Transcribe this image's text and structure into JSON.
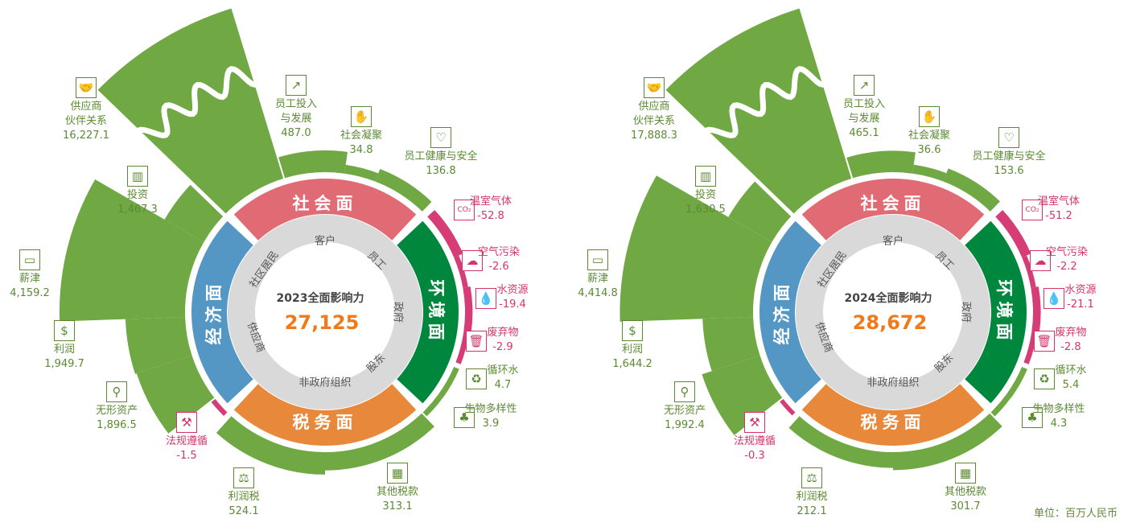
{
  "unit_label": "单位：百万人民币",
  "colors": {
    "positive": "#70a844",
    "negative": "#d63d77",
    "social": "#e06b74",
    "environment": "#00873e",
    "tax": "#e8883a",
    "economic": "#5496c4",
    "stakeholder_ring": "#d9d9d9",
    "total": "#f07a1a",
    "label_green": "#5b8a33",
    "label_pink": "#d6336c"
  },
  "segments": [
    "社会面",
    "环境面",
    "税务面",
    "经济面"
  ],
  "stakeholders": [
    "客户",
    "员工",
    "政府",
    "股东",
    "非政府组织",
    "供应商",
    "社区居民"
  ],
  "chart_data": [
    {
      "type": "radial-bar",
      "title": "2023全面影响力",
      "total": "27,125",
      "items": [
        {
          "label": [
            "供应商",
            "伙伴关系"
          ],
          "value": "16,227.1",
          "v": 16227.1,
          "segment": "经济面",
          "icon": "handshake-icon"
        },
        {
          "label": [
            "投资"
          ],
          "value": "1,467.3",
          "v": 1467.3,
          "segment": "经济面",
          "icon": "bar-chart-icon"
        },
        {
          "label": [
            "薪津"
          ],
          "value": "4,159.2",
          "v": 4159.2,
          "segment": "经济面",
          "icon": "cash-icon"
        },
        {
          "label": [
            "利润"
          ],
          "value": "1,949.7",
          "v": 1949.7,
          "segment": "经济面",
          "icon": "dollar-icon"
        },
        {
          "label": [
            "无形资产"
          ],
          "value": "1,896.5",
          "v": 1896.5,
          "segment": "经济面",
          "icon": "magnifier-dollar-icon"
        },
        {
          "label": [
            "法规遵循"
          ],
          "value": "-1.5",
          "v": -1.5,
          "segment": "税务面",
          "icon": "gavel-icon"
        },
        {
          "label": [
            "利润税"
          ],
          "value": "524.1",
          "v": 524.1,
          "segment": "税务面",
          "icon": "scales-icon"
        },
        {
          "label": [
            "其他税款"
          ],
          "value": "313.1",
          "v": 313.1,
          "segment": "税务面",
          "icon": "building-icon"
        },
        {
          "label": [
            "生物多样性"
          ],
          "value": "3.9",
          "v": 3.9,
          "segment": "环境面",
          "icon": "tree-icon"
        },
        {
          "label": [
            "循环水"
          ],
          "value": "4.7",
          "v": 4.7,
          "segment": "环境面",
          "icon": "recycle-water-icon"
        },
        {
          "label": [
            "废弃物"
          ],
          "value": "-2.9",
          "v": -2.9,
          "segment": "环境面",
          "icon": "trash-icon"
        },
        {
          "label": [
            "水资源"
          ],
          "value": "-19.4",
          "v": -19.4,
          "segment": "环境面",
          "icon": "water-drop-icon"
        },
        {
          "label": [
            "空气污染"
          ],
          "value": "-2.6",
          "v": -2.6,
          "segment": "环境面",
          "icon": "cloud-pollution-icon"
        },
        {
          "label": [
            "温室气体"
          ],
          "value": "-52.8",
          "v": -52.8,
          "segment": "环境面",
          "icon": "co2-icon"
        },
        {
          "label": [
            "员工健康与安全"
          ],
          "value": "136.8",
          "v": 136.8,
          "segment": "社会面",
          "icon": "heart-pulse-icon"
        },
        {
          "label": [
            "社会凝聚"
          ],
          "value": "34.8",
          "v": 34.8,
          "segment": "社会面",
          "icon": "raised-hands-icon"
        },
        {
          "label": [
            "员工投入",
            "与发展"
          ],
          "value": "487.0",
          "v": 487.0,
          "segment": "社会面",
          "icon": "employee-growth-icon"
        }
      ]
    },
    {
      "type": "radial-bar",
      "title": "2024全面影响力",
      "total": "28,672",
      "items": [
        {
          "label": [
            "供应商",
            "伙伴关系"
          ],
          "value": "17,888.3",
          "v": 17888.3,
          "segment": "经济面",
          "icon": "handshake-icon"
        },
        {
          "label": [
            "投资"
          ],
          "value": "1,630.5",
          "v": 1630.5,
          "segment": "经济面",
          "icon": "bar-chart-icon"
        },
        {
          "label": [
            "薪津"
          ],
          "value": "4,414.8",
          "v": 4414.8,
          "segment": "经济面",
          "icon": "cash-icon"
        },
        {
          "label": [
            "利润"
          ],
          "value": "1,644.2",
          "v": 1644.2,
          "segment": "经济面",
          "icon": "dollar-icon"
        },
        {
          "label": [
            "无形资产"
          ],
          "value": "1,992.4",
          "v": 1992.4,
          "segment": "经济面",
          "icon": "magnifier-dollar-icon"
        },
        {
          "label": [
            "法规遵循"
          ],
          "value": "-0.3",
          "v": -0.3,
          "segment": "税务面",
          "icon": "gavel-icon"
        },
        {
          "label": [
            "利润税"
          ],
          "value": "212.1",
          "v": 212.1,
          "segment": "税务面",
          "icon": "scales-icon"
        },
        {
          "label": [
            "其他税款"
          ],
          "value": "301.7",
          "v": 301.7,
          "segment": "税务面",
          "icon": "building-icon"
        },
        {
          "label": [
            "生物多样性"
          ],
          "value": "4.3",
          "v": 4.3,
          "segment": "环境面",
          "icon": "tree-icon"
        },
        {
          "label": [
            "循环水"
          ],
          "value": "5.4",
          "v": 5.4,
          "segment": "环境面",
          "icon": "recycle-water-icon"
        },
        {
          "label": [
            "废弃物"
          ],
          "value": "-2.8",
          "v": -2.8,
          "segment": "环境面",
          "icon": "trash-icon"
        },
        {
          "label": [
            "水资源"
          ],
          "value": "-21.1",
          "v": -21.1,
          "segment": "环境面",
          "icon": "water-drop-icon"
        },
        {
          "label": [
            "空气污染"
          ],
          "value": "-2.2",
          "v": -2.2,
          "segment": "环境面",
          "icon": "cloud-pollution-icon"
        },
        {
          "label": [
            "温室气体"
          ],
          "value": "-51.2",
          "v": -51.2,
          "segment": "环境面",
          "icon": "co2-icon"
        },
        {
          "label": [
            "员工健康与安全"
          ],
          "value": "153.6",
          "v": 153.6,
          "segment": "社会面",
          "icon": "heart-pulse-icon"
        },
        {
          "label": [
            "社会凝聚"
          ],
          "value": "36.6",
          "v": 36.6,
          "segment": "社会面",
          "icon": "raised-hands-icon"
        },
        {
          "label": [
            "员工投入",
            "与发展"
          ],
          "value": "465.1",
          "v": 465.1,
          "segment": "社会面",
          "icon": "employee-growth-icon"
        }
      ]
    }
  ]
}
